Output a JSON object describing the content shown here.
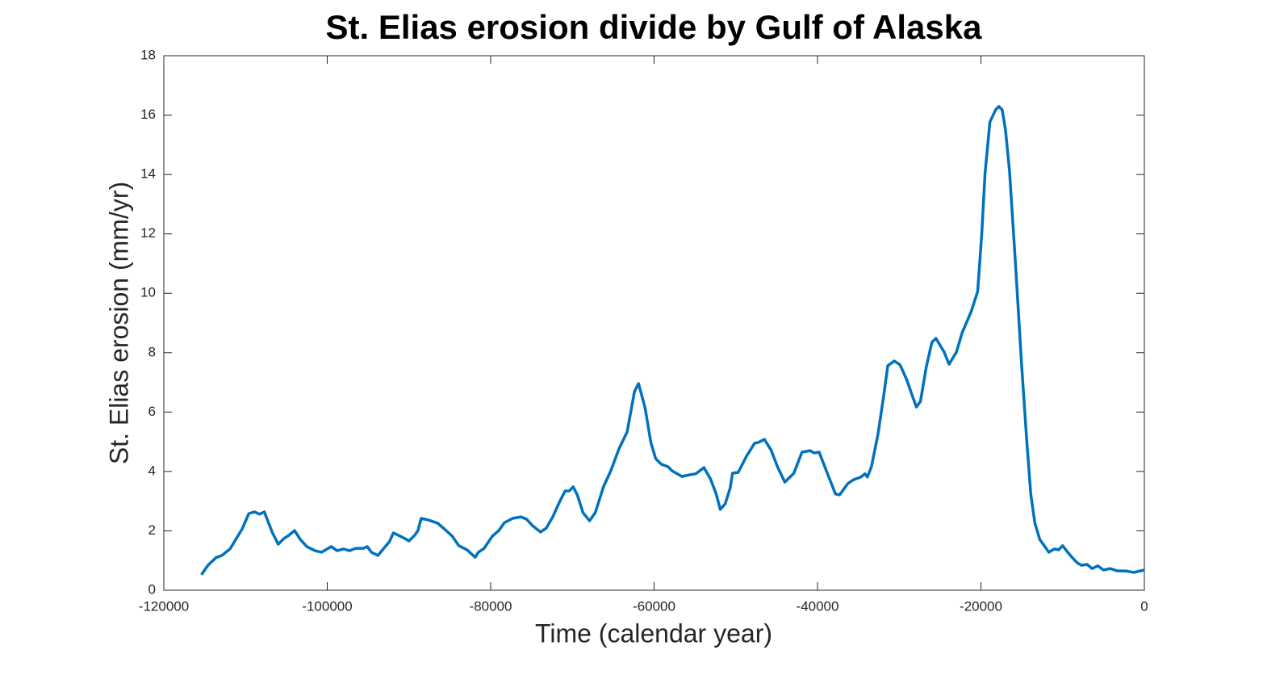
{
  "chart_data": {
    "type": "line",
    "title": "St. Elias erosion divide by Gulf of Alaska",
    "x_label": "Time (calendar year)",
    "y_label": "St. Elias erosion (mm/yr)",
    "xlim": [
      -120000,
      0
    ],
    "xticks": [
      -120000,
      -100000,
      -80000,
      -60000,
      -40000,
      -20000,
      0
    ],
    "ylim": [
      0,
      18
    ],
    "yticks": [
      0,
      2,
      4,
      6,
      8,
      10,
      12,
      14,
      16,
      18
    ],
    "grid": false,
    "x": [
      -115400,
      -114600,
      -113600,
      -112900,
      -111900,
      -110400,
      -109600,
      -108900,
      -108300,
      -107700,
      -107200,
      -106700,
      -106000,
      -105300,
      -104700,
      -104000,
      -103300,
      -102500,
      -101500,
      -100700,
      -100000,
      -99500,
      -98800,
      -98000,
      -97300,
      -96500,
      -95600,
      -95100,
      -94600,
      -93800,
      -92900,
      -92400,
      -91900,
      -91300,
      -90700,
      -90000,
      -89300,
      -88900,
      -88500,
      -87700,
      -86500,
      -85700,
      -84700,
      -83900,
      -82900,
      -81900,
      -81500,
      -80800,
      -79800,
      -79000,
      -78300,
      -77300,
      -76300,
      -75600,
      -74900,
      -73900,
      -73200,
      -72400,
      -71600,
      -70900,
      -70400,
      -69900,
      -69400,
      -68700,
      -67900,
      -67200,
      -66200,
      -65300,
      -64300,
      -63300,
      -62400,
      -61900,
      -61100,
      -60400,
      -59800,
      -59100,
      -58300,
      -57800,
      -56600,
      -55600,
      -54900,
      -53900,
      -53100,
      -52400,
      -51900,
      -51300,
      -50700,
      -50400,
      -49700,
      -48700,
      -47700,
      -47200,
      -46500,
      -45700,
      -44900,
      -44000,
      -42900,
      -41900,
      -40900,
      -40400,
      -39800,
      -38800,
      -37800,
      -37300,
      -36300,
      -35600,
      -34700,
      -34200,
      -33900,
      -33400,
      -32600,
      -31900,
      -31400,
      -30600,
      -29900,
      -29100,
      -28400,
      -27900,
      -27400,
      -26700,
      -26000,
      -25500,
      -24500,
      -23900,
      -23000,
      -22300,
      -21200,
      -20400,
      -19900,
      -19500,
      -18900,
      -18200,
      -17800,
      -17400,
      -17000,
      -16500,
      -15800,
      -15000,
      -14400,
      -13900,
      -13400,
      -12800,
      -12100,
      -11700,
      -11000,
      -10500,
      -10000,
      -9300,
      -8700,
      -8200,
      -7700,
      -7000,
      -6400,
      -5700,
      -5000,
      -4200,
      -3300,
      -2300,
      -1300,
      -800,
      0
    ],
    "series": [
      {
        "name": "St. Elias erosion",
        "color": "#0072bd",
        "values": [
          0.52,
          0.84,
          1.1,
          1.17,
          1.39,
          2.07,
          2.58,
          2.64,
          2.56,
          2.64,
          2.28,
          1.93,
          1.55,
          1.74,
          1.85,
          2.01,
          1.71,
          1.47,
          1.33,
          1.28,
          1.39,
          1.47,
          1.33,
          1.39,
          1.33,
          1.41,
          1.41,
          1.47,
          1.28,
          1.17,
          1.47,
          1.63,
          1.93,
          1.85,
          1.77,
          1.66,
          1.85,
          2.01,
          2.42,
          2.37,
          2.26,
          2.07,
          1.82,
          1.5,
          1.36,
          1.11,
          1.28,
          1.41,
          1.82,
          2.01,
          2.28,
          2.42,
          2.47,
          2.39,
          2.18,
          1.96,
          2.09,
          2.47,
          2.96,
          3.34,
          3.34,
          3.48,
          3.21,
          2.61,
          2.34,
          2.61,
          3.48,
          4.02,
          4.76,
          5.33,
          6.69,
          6.96,
          6.14,
          4.98,
          4.43,
          4.24,
          4.16,
          4.02,
          3.83,
          3.89,
          3.92,
          4.13,
          3.75,
          3.24,
          2.72,
          2.91,
          3.43,
          3.94,
          3.97,
          4.51,
          4.95,
          4.98,
          5.08,
          4.73,
          4.16,
          3.64,
          3.94,
          4.65,
          4.7,
          4.62,
          4.65,
          3.94,
          3.24,
          3.21,
          3.59,
          3.72,
          3.81,
          3.92,
          3.81,
          4.16,
          5.25,
          6.55,
          7.56,
          7.72,
          7.59,
          7.1,
          6.55,
          6.17,
          6.36,
          7.5,
          8.35,
          8.48,
          8.02,
          7.61,
          8.02,
          8.67,
          9.38,
          10.06,
          11.99,
          14.03,
          15.77,
          16.18,
          16.29,
          16.18,
          15.52,
          14.11,
          11.12,
          7.5,
          5.06,
          3.24,
          2.26,
          1.71,
          1.44,
          1.28,
          1.39,
          1.36,
          1.5,
          1.25,
          1.06,
          0.92,
          0.84,
          0.87,
          0.73,
          0.82,
          0.68,
          0.73,
          0.65,
          0.65,
          0.6,
          0.63,
          0.68
        ]
      }
    ]
  }
}
